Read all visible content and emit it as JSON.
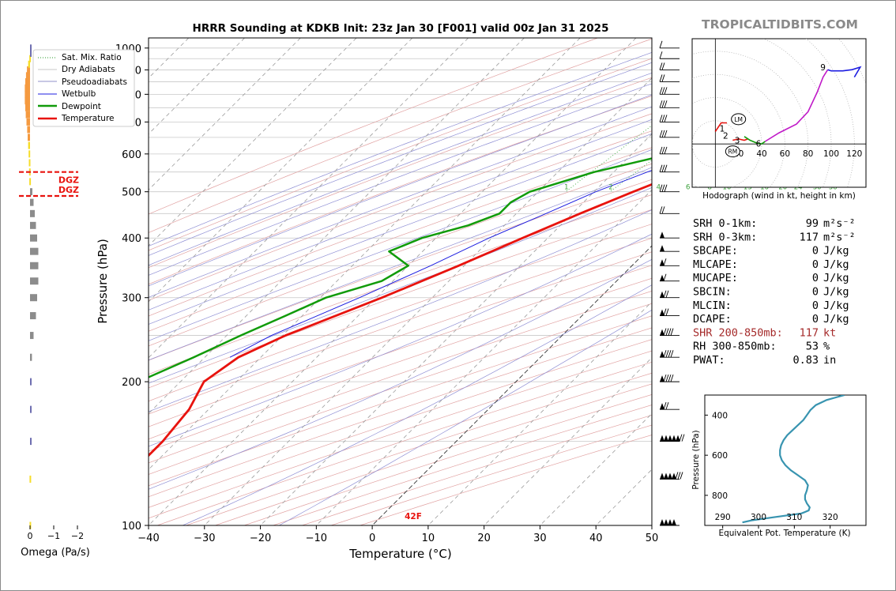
{
  "title": "HRRR Sounding at KDKB Init: 23z Jan 30 [F001] valid 00z Jan 31 2025",
  "brand": "TROPICALTIDBITS.COM",
  "colors": {
    "temperature": "#e8130e",
    "dewpoint": "#119b0a",
    "wetbulb": "#1c1ce0",
    "dgz": "#e8130e",
    "omega_up": "#f59a40",
    "omega_yellow": "#f6dd2a",
    "omega_down": "#8c8c8c",
    "thetae": "#3894b0",
    "hodo_red": "#e8130e",
    "hodo_green": "#119b0a",
    "hodo_magenta": "#c01ac8",
    "hodo_blue": "#1c1ce0"
  },
  "skewt": {
    "xlabel": "Temperature (°C)",
    "ylabel": "Pressure (hPa)",
    "x_ticks": [
      "−40",
      "−30",
      "−20",
      "−10",
      "0",
      "10",
      "20",
      "30",
      "40",
      "50"
    ],
    "y_ticks": [
      "100",
      "200",
      "300",
      "400",
      "500",
      "600",
      "700",
      "800",
      "900",
      "1000"
    ],
    "surface_label": "42F",
    "mixing_ratio_labels": [
      "1",
      "2",
      "4",
      "6",
      "8",
      "10",
      "13",
      "16",
      "20",
      "24",
      "30",
      "36"
    ],
    "legend": [
      "Sat. Mix. Ratio",
      "Dry Adiabats",
      "Pseudoadiabats",
      "Wetbulb",
      "Dewpoint",
      "Temperature"
    ]
  },
  "omega": {
    "xlabel": "Omega (Pa/s)",
    "x_ticks": [
      "0",
      "−1",
      "−2"
    ],
    "dgz_label": "DGZ"
  },
  "hodograph": {
    "caption": "Hodograph (wind in kt, height in km)",
    "x_ticks": [
      "20",
      "40",
      "60",
      "80",
      "100",
      "120"
    ],
    "height_labels": [
      "1",
      "2",
      "3",
      "6",
      "9"
    ],
    "lm_label": "LM",
    "rm_label": "RM"
  },
  "indices": [
    {
      "name": "SRH 0-1km:",
      "value": "99",
      "unit": "m²s⁻²",
      "highlight": false
    },
    {
      "name": "SRH 0-3km:",
      "value": "117",
      "unit": "m²s⁻²",
      "highlight": false
    },
    {
      "name": "SBCAPE:",
      "value": "0",
      "unit": "J/kg",
      "highlight": false
    },
    {
      "name": "MLCAPE:",
      "value": "0",
      "unit": "J/kg",
      "highlight": false
    },
    {
      "name": "MUCAPE:",
      "value": "0",
      "unit": "J/kg",
      "highlight": false
    },
    {
      "name": "SBCIN:",
      "value": "0",
      "unit": "J/kg",
      "highlight": false
    },
    {
      "name": "MLCIN:",
      "value": "0",
      "unit": "J/kg",
      "highlight": false
    },
    {
      "name": "DCAPE:",
      "value": "0",
      "unit": "J/kg",
      "highlight": false
    },
    {
      "name": "SHR 200-850mb:",
      "value": "117",
      "unit": "kt",
      "highlight": true
    },
    {
      "name": "RH 300-850mb:",
      "value": "53",
      "unit": "%",
      "highlight": false
    },
    {
      "name": "PWAT:",
      "value": "0.83",
      "unit": "in",
      "highlight": false
    }
  ],
  "thetae": {
    "xlabel": "Equivalent Pot. Temperature (K)",
    "ylabel": "Pressure (hPa)",
    "x_ticks": [
      "290",
      "300",
      "310",
      "320"
    ],
    "y_ticks": [
      "400",
      "600",
      "800"
    ]
  },
  "chart_data": [
    {
      "type": "line",
      "title": "HRRR Sounding at KDKB Init: 23z Jan 30 [F001] valid 00z Jan 31 2025",
      "xlabel": "Temperature (°C)",
      "ylabel": "Pressure (hPa)",
      "xlim": [
        -40,
        50
      ],
      "ylim": [
        1050,
        100
      ],
      "y_scale": "log",
      "skew": "skew-T",
      "legend_position": "top-left",
      "series": [
        {
          "name": "Temperature",
          "points": [
            [
              1000,
              5.5
            ],
            [
              975,
              7.2
            ],
            [
              950,
              10.0
            ],
            [
              925,
              12.0
            ],
            [
              900,
              13.0
            ],
            [
              875,
              13.2
            ],
            [
              850,
              13.0
            ],
            [
              825,
              12.3
            ],
            [
              800,
              11.0
            ],
            [
              775,
              9.8
            ],
            [
              750,
              8.4
            ],
            [
              725,
              7.0
            ],
            [
              700,
              5.2
            ],
            [
              650,
              1.5
            ],
            [
              600,
              -2.6
            ],
            [
              550,
              -7.6
            ],
            [
              500,
              -13.0
            ],
            [
              450,
              -18.6
            ],
            [
              400,
              -24.5
            ],
            [
              350,
              -31.0
            ],
            [
              300,
              -39.0
            ],
            [
              250,
              -49.5
            ],
            [
              225,
              -54.0
            ],
            [
              200,
              -55.8
            ],
            [
              175,
              -53.5
            ],
            [
              150,
              -52.5
            ],
            [
              125,
              -52.5
            ],
            [
              100,
              -53.0
            ]
          ]
        },
        {
          "name": "Dewpoint",
          "points": [
            [
              1000,
              5.0
            ],
            [
              975,
              6.8
            ],
            [
              950,
              9.2
            ],
            [
              925,
              10.4
            ],
            [
              900,
              10.5
            ],
            [
              875,
              9.5
            ],
            [
              850,
              7.5
            ],
            [
              825,
              5.5
            ],
            [
              800,
              4.0
            ],
            [
              775,
              3.2
            ],
            [
              750,
              2.6
            ],
            [
              725,
              1.7
            ],
            [
              700,
              -0.3
            ],
            [
              650,
              -5.3
            ],
            [
              600,
              -13.0
            ],
            [
              550,
              -23.5
            ],
            [
              500,
              -31.5
            ],
            [
              475,
              -33.0
            ],
            [
              450,
              -33.0
            ],
            [
              425,
              -36.5
            ],
            [
              400,
              -42.5
            ],
            [
              375,
              -46.0
            ],
            [
              350,
              -40.0
            ],
            [
              325,
              -42.0
            ],
            [
              300,
              -49.0
            ],
            [
              275,
              -53.0
            ],
            [
              250,
              -57.5
            ],
            [
              225,
              -62.0
            ],
            [
              200,
              -67.5
            ],
            [
              175,
              -79.0
            ],
            [
              150,
              -84.0
            ],
            [
              125,
              -81.0
            ],
            [
              100,
              -80.0
            ]
          ]
        },
        {
          "name": "Wetbulb",
          "points": [
            [
              1000,
              5.2
            ],
            [
              950,
              9.4
            ],
            [
              900,
              11.0
            ],
            [
              850,
              9.0
            ],
            [
              800,
              6.5
            ],
            [
              750,
              4.3
            ],
            [
              700,
              1.7
            ],
            [
              650,
              -2.7
            ],
            [
              600,
              -8.2
            ],
            [
              550,
              -14.0
            ],
            [
              500,
              -19.7
            ],
            [
              450,
              -24.7
            ],
            [
              400,
              -30.5
            ],
            [
              350,
              -36.0
            ],
            [
              300,
              -43.0
            ],
            [
              250,
              -52.0
            ],
            [
              225,
              -55.5
            ]
          ]
        }
      ],
      "mixing_ratios_gkg": [
        1,
        2,
        4,
        6,
        8,
        10,
        13,
        16,
        20,
        24,
        30,
        36
      ]
    },
    {
      "type": "bar",
      "title": "",
      "xlabel": "Omega (Pa/s)",
      "xlim": [
        0.3,
        -2.2
      ],
      "pressure_levels": [
        100,
        125,
        150,
        175,
        200,
        225,
        250,
        275,
        300,
        325,
        350,
        375,
        400,
        425,
        450,
        475,
        500,
        525,
        550,
        575,
        600,
        625,
        650,
        675,
        700,
        725,
        750,
        775,
        800,
        825,
        850,
        875,
        900,
        925,
        950,
        975,
        1000
      ],
      "values": [
        0.02,
        0.02,
        -0.02,
        -0.02,
        -0.02,
        -0.08,
        -0.15,
        -0.25,
        -0.3,
        -0.35,
        -0.35,
        -0.35,
        -0.3,
        -0.25,
        -0.2,
        -0.15,
        -0.1,
        0.03,
        0.04,
        0.05,
        0.06,
        0.08,
        0.1,
        0.12,
        0.15,
        0.18,
        0.2,
        0.22,
        0.22,
        0.22,
        0.2,
        0.17,
        0.13,
        0.08,
        0.03,
        -0.02,
        -0.02
      ],
      "dgz": {
        "top_hpa": 490,
        "bottom_hpa": 550
      }
    },
    {
      "type": "line",
      "title": "",
      "xlabel": "wind (kt)",
      "caption": "Hodograph (wind in kt, height in km)",
      "xlim": [
        -20,
        130
      ],
      "ylim": [
        -35,
        85
      ],
      "series": [
        {
          "name": "0-1 km",
          "points": [
            [
              0,
              10
            ],
            [
              5,
              17
            ],
            [
              10,
              17
            ]
          ]
        },
        {
          "name": "1-3 km",
          "points": [
            [
              15,
              3
            ],
            [
              20,
              4
            ],
            [
              25,
              3
            ],
            [
              28,
              4
            ]
          ]
        },
        {
          "name": "3-6 km",
          "points": [
            [
              25,
              6
            ],
            [
              30,
              3
            ],
            [
              35,
              1
            ],
            [
              40,
              0
            ],
            [
              43,
              2
            ]
          ]
        },
        {
          "name": "6-9 km",
          "points": [
            [
              43,
              2
            ],
            [
              55,
              9
            ],
            [
              70,
              16
            ],
            [
              80,
              26
            ],
            [
              88,
              42
            ],
            [
              93,
              54
            ],
            [
              97,
              60
            ]
          ]
        },
        {
          "name": "9+ km",
          "points": [
            [
              97,
              60
            ],
            [
              100,
              59
            ],
            [
              110,
              59
            ],
            [
              118,
              60
            ],
            [
              125,
              62
            ],
            [
              120,
              54
            ]
          ]
        }
      ],
      "height_markers_km": [
        {
          "km": 1,
          "u": 10,
          "v": 10
        },
        {
          "km": 2,
          "u": 13,
          "v": 5
        },
        {
          "km": 3,
          "u": 21,
          "v": 3
        },
        {
          "km": 6,
          "u": 40,
          "v": 1
        },
        {
          "km": 9,
          "u": 97,
          "v": 60
        }
      ],
      "storm_motion": {
        "LM": [
          20,
          20
        ],
        "RM": [
          15,
          -6
        ]
      }
    },
    {
      "type": "line",
      "title": "",
      "xlabel": "Equivalent Pot. Temperature (K)",
      "ylabel": "Pressure (hPa)",
      "xlim": [
        285,
        330
      ],
      "ylim": [
        950,
        300
      ],
      "series": [
        {
          "name": "Equivalent potential temperature",
          "points": [
            [
              935,
              295.5
            ],
            [
              925,
              298
            ],
            [
              910,
              304
            ],
            [
              890,
              312
            ],
            [
              875,
              314
            ],
            [
              860,
              314.3
            ],
            [
              840,
              313.5
            ],
            [
              820,
              313
            ],
            [
              800,
              313
            ],
            [
              775,
              313.5
            ],
            [
              750,
              313.8
            ],
            [
              725,
              313
            ],
            [
              700,
              311
            ],
            [
              675,
              309
            ],
            [
              650,
              307.5
            ],
            [
              625,
              306.5
            ],
            [
              600,
              306
            ],
            [
              575,
              306
            ],
            [
              550,
              306.3
            ],
            [
              525,
              307
            ],
            [
              500,
              308
            ],
            [
              475,
              309.5
            ],
            [
              450,
              311
            ],
            [
              425,
              312.5
            ],
            [
              400,
              313.5
            ],
            [
              375,
              314.5
            ],
            [
              350,
              316
            ],
            [
              325,
              319
            ],
            [
              310,
              322
            ],
            [
              300,
              324
            ]
          ]
        }
      ]
    }
  ]
}
